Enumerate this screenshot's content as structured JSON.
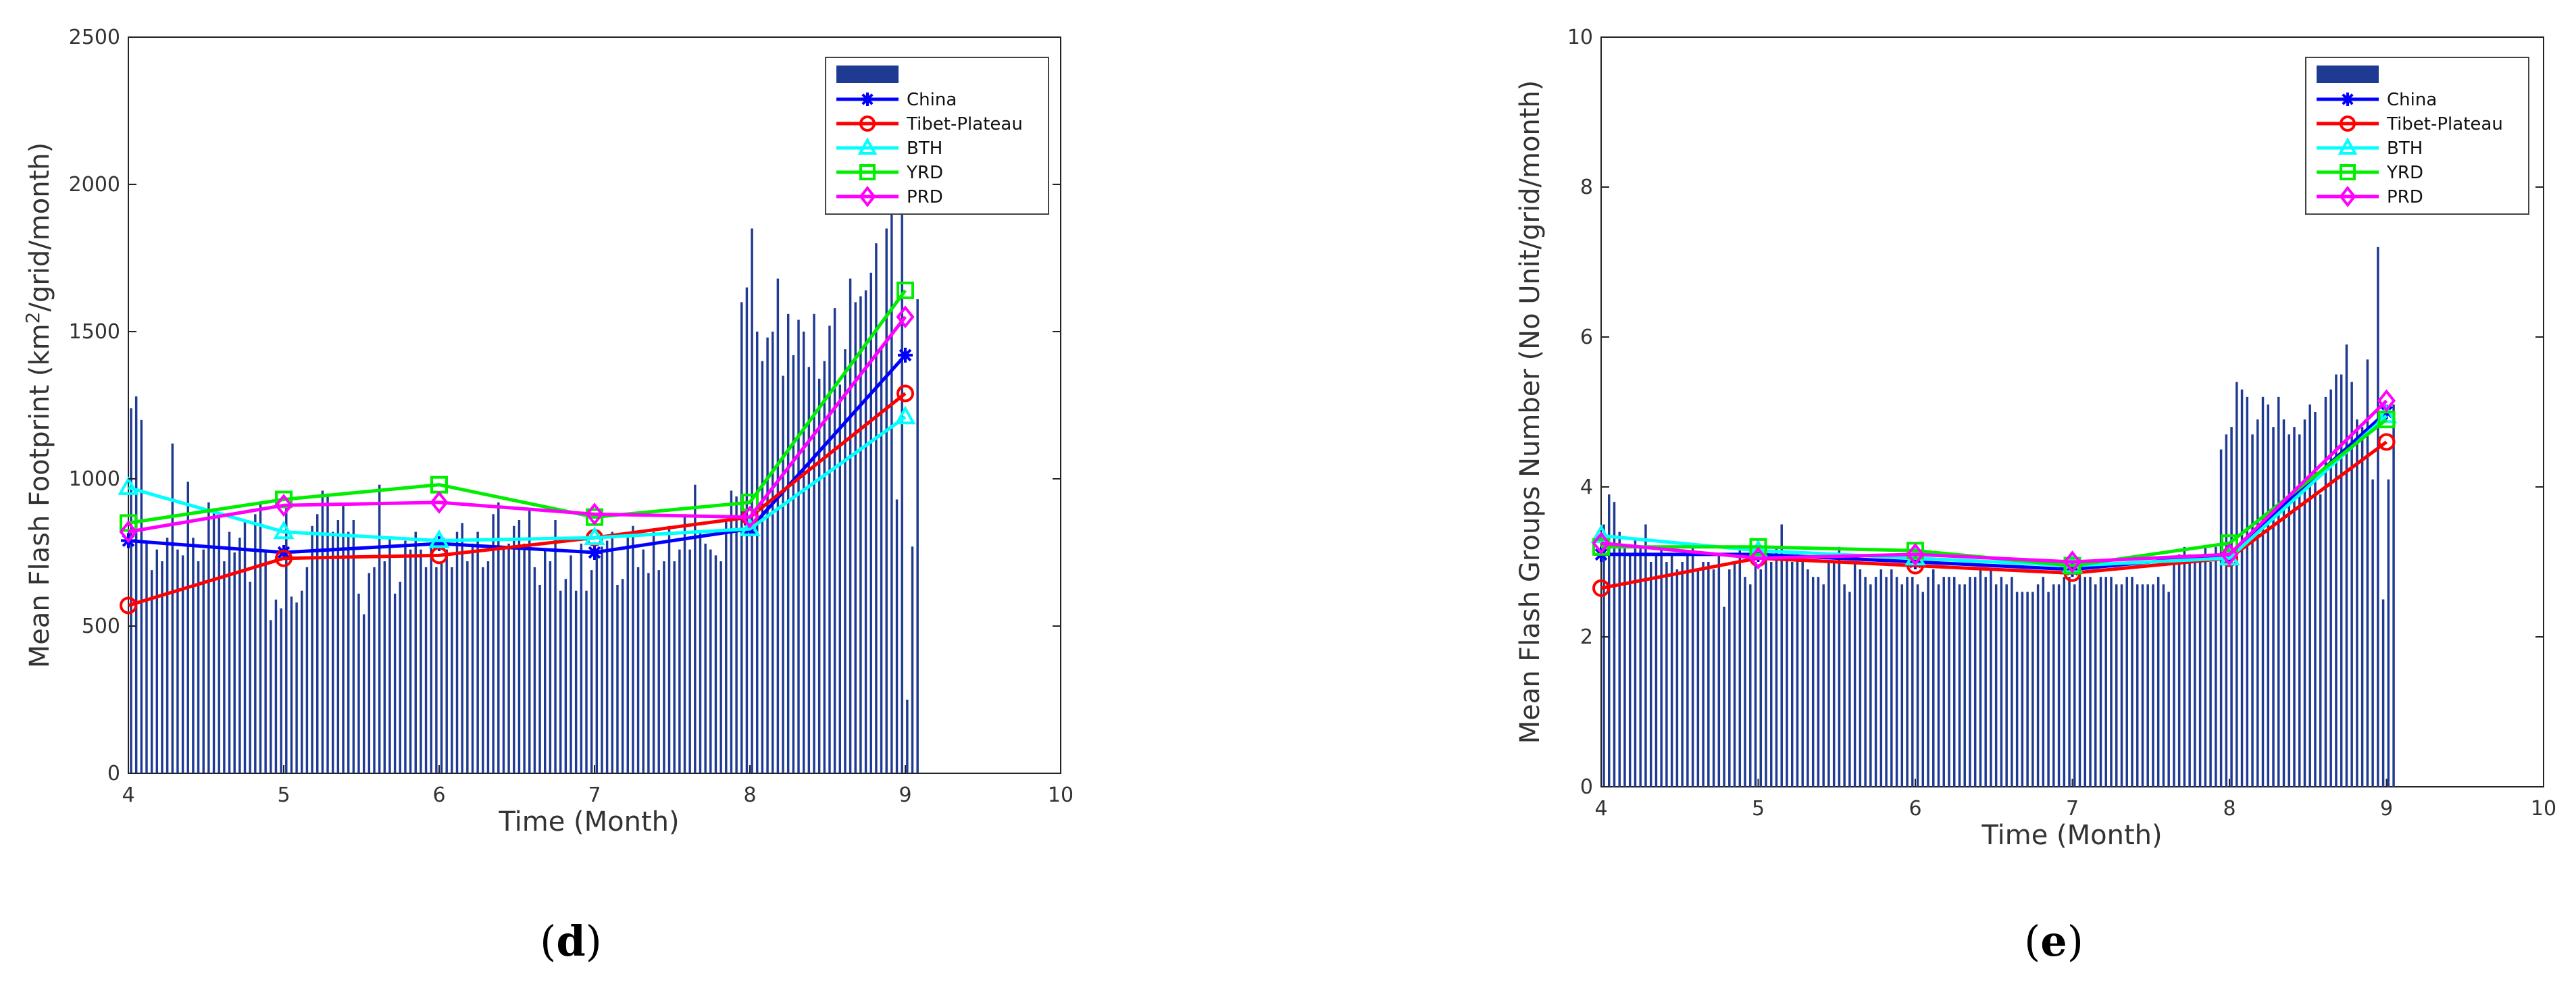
{
  "figure": {
    "labels": [
      "d",
      "e"
    ]
  },
  "chart_data": [
    {
      "type": "bar+line",
      "panel": "d",
      "ylabel": "Mean Flash Footprint (km²/grid/month)",
      "ylabel_parts": [
        "Mean Flash Footprint (km",
        "2",
        "/grid/month)"
      ],
      "xlabel": "Time (Month)",
      "xlim": [
        4,
        10
      ],
      "ylim": [
        0,
        2500
      ],
      "xticks": [
        "4",
        "5",
        "6",
        "7",
        "8",
        "9",
        "10"
      ],
      "yticks": [
        "0",
        "500",
        "1000",
        "1500",
        "2000",
        "2500"
      ],
      "legend": {
        "position": "top-right",
        "bar_label": ""
      },
      "bars": {
        "name": "",
        "color": "#1f3a93",
        "start": 4.0,
        "step": 0.0333,
        "values": [
          1240,
          1280,
          1200,
          780,
          690,
          760,
          720,
          800,
          1120,
          760,
          740,
          990,
          800,
          720,
          760,
          920,
          900,
          870,
          720,
          820,
          750,
          800,
          860,
          650,
          880,
          920,
          760,
          520,
          590,
          560,
          900,
          600,
          580,
          620,
          700,
          840,
          880,
          960,
          950,
          820,
          860,
          910,
          820,
          860,
          610,
          540,
          680,
          700,
          980,
          720,
          800,
          610,
          650,
          790,
          760,
          820,
          760,
          700,
          780,
          700,
          720,
          760,
          700,
          820,
          850,
          720,
          780,
          820,
          700,
          720,
          880,
          920,
          760,
          780,
          840,
          860,
          780,
          900,
          700,
          640,
          760,
          720,
          860,
          620,
          660,
          740,
          620,
          780,
          620,
          690,
          760,
          770,
          790,
          820,
          640,
          660,
          800,
          840,
          700,
          760,
          680,
          820,
          690,
          720,
          840,
          720,
          760,
          880,
          760,
          980,
          820,
          780,
          760,
          740,
          720,
          860,
          960,
          940,
          1600,
          1650,
          1850,
          1500,
          1400,
          1480,
          1500,
          1680,
          1350,
          1560,
          1420,
          1540,
          1500,
          1380,
          1560,
          1340,
          1400,
          1520,
          1580,
          1320,
          1440,
          1680,
          1600,
          1620,
          1640,
          1700,
          1800,
          1450,
          1850,
          1950,
          930,
          2000,
          250,
          770,
          1610
        ]
      },
      "series": [
        {
          "name": "China",
          "color": "#0000ff",
          "marker": "star",
          "x": [
            4,
            5,
            6,
            7,
            8,
            9
          ],
          "values": [
            790,
            750,
            780,
            750,
            830,
            1420
          ]
        },
        {
          "name": "Tibet-Plateau",
          "color": "#ff0000",
          "marker": "circle",
          "x": [
            4,
            5,
            6,
            7,
            8,
            9
          ],
          "values": [
            570,
            730,
            740,
            800,
            870,
            1290
          ]
        },
        {
          "name": "BTH",
          "color": "#00ffff",
          "marker": "triangle",
          "x": [
            4,
            5,
            6,
            7,
            8,
            9
          ],
          "values": [
            970,
            820,
            790,
            800,
            830,
            1210
          ]
        },
        {
          "name": "YRD",
          "color": "#00ee00",
          "marker": "square",
          "x": [
            4,
            5,
            6,
            7,
            8,
            9
          ],
          "values": [
            850,
            930,
            980,
            870,
            920,
            1640
          ]
        },
        {
          "name": "PRD",
          "color": "#ff00ff",
          "marker": "diamond",
          "x": [
            4,
            5,
            6,
            7,
            8,
            9
          ],
          "values": [
            820,
            910,
            920,
            880,
            870,
            1550
          ]
        }
      ]
    },
    {
      "type": "bar+line",
      "panel": "e",
      "ylabel": "Mean Flash Groups Number (No Unit/grid/month)",
      "xlabel": "Time (Month)",
      "xlim": [
        4,
        10
      ],
      "ylim": [
        0,
        10
      ],
      "xticks": [
        "4",
        "5",
        "6",
        "7",
        "8",
        "9",
        "10"
      ],
      "yticks": [
        "0",
        "2",
        "4",
        "6",
        "8",
        "10"
      ],
      "legend": {
        "position": "top-right",
        "bar_label": ""
      },
      "bars": {
        "name": "",
        "color": "#1f3a93",
        "start": 4.0,
        "step": 0.0333,
        "values": [
          3.5,
          3.9,
          3.8,
          3.4,
          3.2,
          3.1,
          3.3,
          3.2,
          3.5,
          3.0,
          3.1,
          3.2,
          3.0,
          3.1,
          2.9,
          3.0,
          3.1,
          3.2,
          2.9,
          3.0,
          3.0,
          2.9,
          3.1,
          2.4,
          2.9,
          3.0,
          3.2,
          2.8,
          2.7,
          3.0,
          2.9,
          3.2,
          3.0,
          3.2,
          3.5,
          3.1,
          3.0,
          3.1,
          3.0,
          2.9,
          2.8,
          2.8,
          2.7,
          3.0,
          3.0,
          3.2,
          2.7,
          2.6,
          3.0,
          2.9,
          2.8,
          2.7,
          2.8,
          2.9,
          2.8,
          2.9,
          2.8,
          2.7,
          2.8,
          2.8,
          2.7,
          2.6,
          2.8,
          2.9,
          2.7,
          2.8,
          2.8,
          2.8,
          2.7,
          2.7,
          2.8,
          2.8,
          2.9,
          2.8,
          2.9,
          2.7,
          2.8,
          2.7,
          2.8,
          2.6,
          2.6,
          2.6,
          2.6,
          2.7,
          2.8,
          2.6,
          2.7,
          2.7,
          2.8,
          2.8,
          2.7,
          2.9,
          2.8,
          2.8,
          2.7,
          2.8,
          2.8,
          2.8,
          2.7,
          2.7,
          2.8,
          2.8,
          2.7,
          2.7,
          2.7,
          2.7,
          2.8,
          2.7,
          2.6,
          3.0,
          3.1,
          3.2,
          3.1,
          3.0,
          3.1,
          3.2,
          3.0,
          3.2,
          4.5,
          4.7,
          4.8,
          5.4,
          5.3,
          5.2,
          4.7,
          4.9,
          5.2,
          5.1,
          4.8,
          5.2,
          4.9,
          4.7,
          4.8,
          4.7,
          4.9,
          5.1,
          5.0,
          3.9,
          5.2,
          5.3,
          5.5,
          5.5,
          5.9,
          5.4,
          4.9,
          4.8,
          5.7,
          4.1,
          7.2,
          2.5,
          4.1,
          5.1
        ]
      },
      "series": [
        {
          "name": "China",
          "color": "#0000ff",
          "marker": "star",
          "x": [
            4,
            5,
            6,
            7,
            8,
            9
          ],
          "values": [
            3.1,
            3.1,
            3.0,
            2.9,
            3.1,
            5.0
          ]
        },
        {
          "name": "Tibet-Plateau",
          "color": "#ff0000",
          "marker": "circle",
          "x": [
            4,
            5,
            6,
            7,
            8,
            9
          ],
          "values": [
            2.65,
            3.05,
            2.95,
            2.85,
            3.05,
            4.6
          ]
        },
        {
          "name": "BTH",
          "color": "#00ffff",
          "marker": "triangle",
          "x": [
            4,
            5,
            6,
            7,
            8,
            9
          ],
          "values": [
            3.35,
            3.15,
            3.05,
            2.95,
            3.05,
            4.95
          ]
        },
        {
          "name": "YRD",
          "color": "#00ee00",
          "marker": "square",
          "x": [
            4,
            5,
            6,
            7,
            8,
            9
          ],
          "values": [
            3.2,
            3.2,
            3.15,
            2.95,
            3.25,
            4.9
          ]
        },
        {
          "name": "PRD",
          "color": "#ff00ff",
          "marker": "diamond",
          "x": [
            4,
            5,
            6,
            7,
            8,
            9
          ],
          "values": [
            3.25,
            3.05,
            3.1,
            3.0,
            3.1,
            5.15
          ]
        }
      ]
    }
  ]
}
